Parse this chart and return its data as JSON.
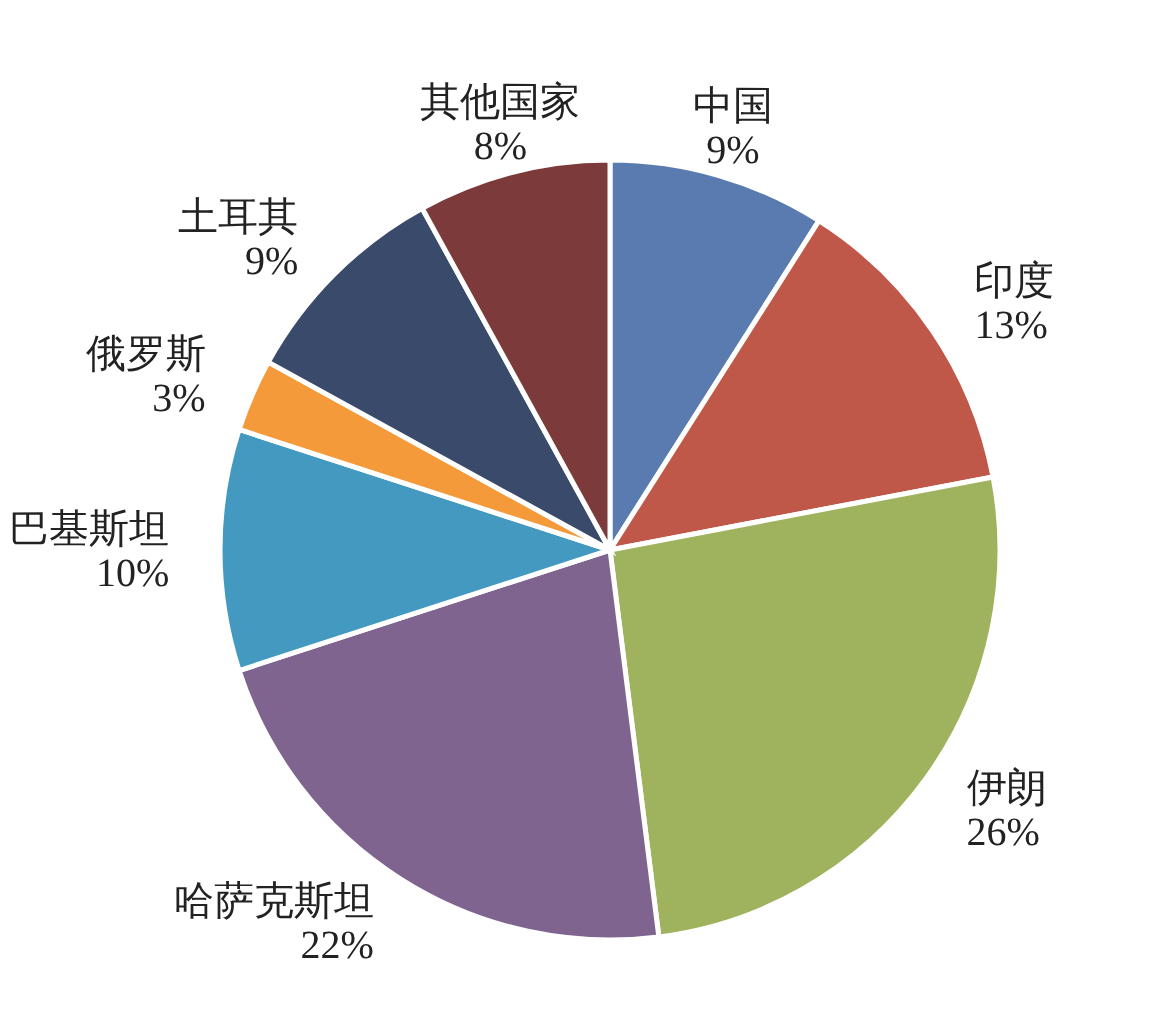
{
  "chart_data": {
    "type": "pie",
    "categories": [
      "中国",
      "印度",
      "伊朗",
      "哈萨克斯坦",
      "巴基斯坦",
      "俄罗斯",
      "土耳其",
      "其他国家"
    ],
    "values": [
      9,
      13,
      26,
      22,
      10,
      3,
      9,
      8
    ],
    "colors": [
      "#5a7bb0",
      "#c0584a",
      "#9fb35e",
      "#7f6490",
      "#4399c0",
      "#f49a3a",
      "#394a6a",
      "#7d3a3a"
    ],
    "value_labels": [
      "9%",
      "13%",
      "26%",
      "22%",
      "10%",
      "3%",
      "9%",
      "8%"
    ]
  }
}
